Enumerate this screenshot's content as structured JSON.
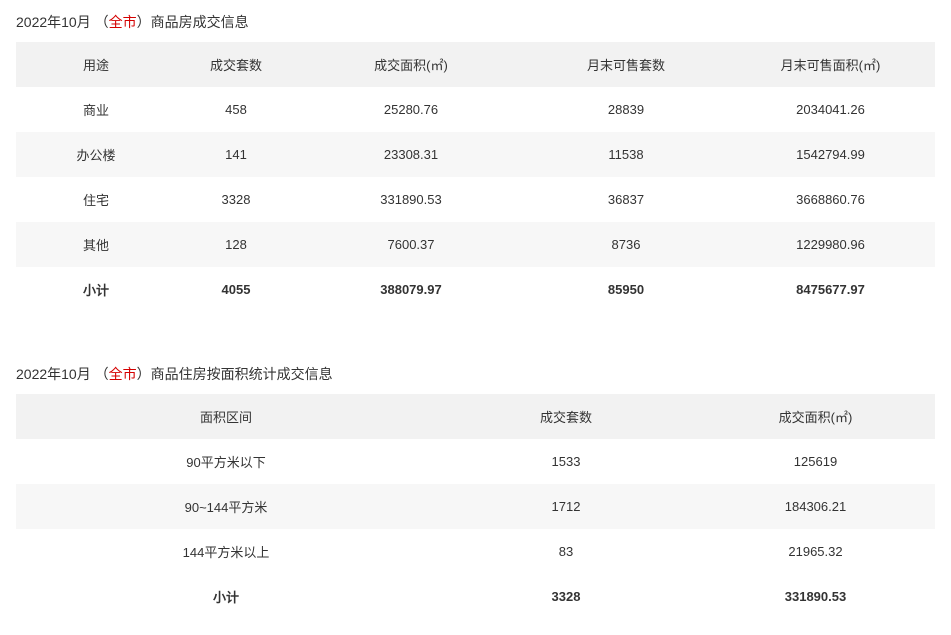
{
  "colors": {
    "bg": "#ffffff",
    "text": "#333333",
    "accent_red": "#d40000",
    "header_bg": "#f2f2f2",
    "row_alt_bg": "#f7f7f7"
  },
  "table1": {
    "title_prefix": "2022年10月  （",
    "title_red": "全市",
    "title_suffix": "）商品房成交信息",
    "columns": [
      "用途",
      "成交套数",
      "成交面积(㎡)",
      "月末可售套数",
      "月末可售面积(㎡)"
    ],
    "col_widths": [
      "160px",
      "120px",
      "230px",
      "200px",
      "auto"
    ],
    "rows": [
      [
        "商业",
        "458",
        "25280.76",
        "28839",
        "2034041.26"
      ],
      [
        "办公楼",
        "141",
        "23308.31",
        "11538",
        "1542794.99"
      ],
      [
        "住宅",
        "3328",
        "331890.53",
        "36837",
        "3668860.76"
      ],
      [
        "其他",
        "128",
        "7600.37",
        "8736",
        "1229980.96"
      ]
    ],
    "total": [
      "小计",
      "4055",
      "388079.97",
      "85950",
      "8475677.97"
    ]
  },
  "table2": {
    "title_prefix": "2022年10月  （",
    "title_red": "全市",
    "title_suffix": "）商品住房按面积统计成交信息",
    "columns": [
      "面积区间",
      "成交套数",
      "成交面积(㎡)"
    ],
    "col_widths": [
      "420px",
      "260px",
      "auto"
    ],
    "rows": [
      [
        "90平方米以下",
        "1533",
        "125619"
      ],
      [
        "90~144平方米",
        "1712",
        "184306.21"
      ],
      [
        "144平方米以上",
        "83",
        "21965.32"
      ]
    ],
    "total": [
      "小计",
      "3328",
      "331890.53"
    ]
  }
}
